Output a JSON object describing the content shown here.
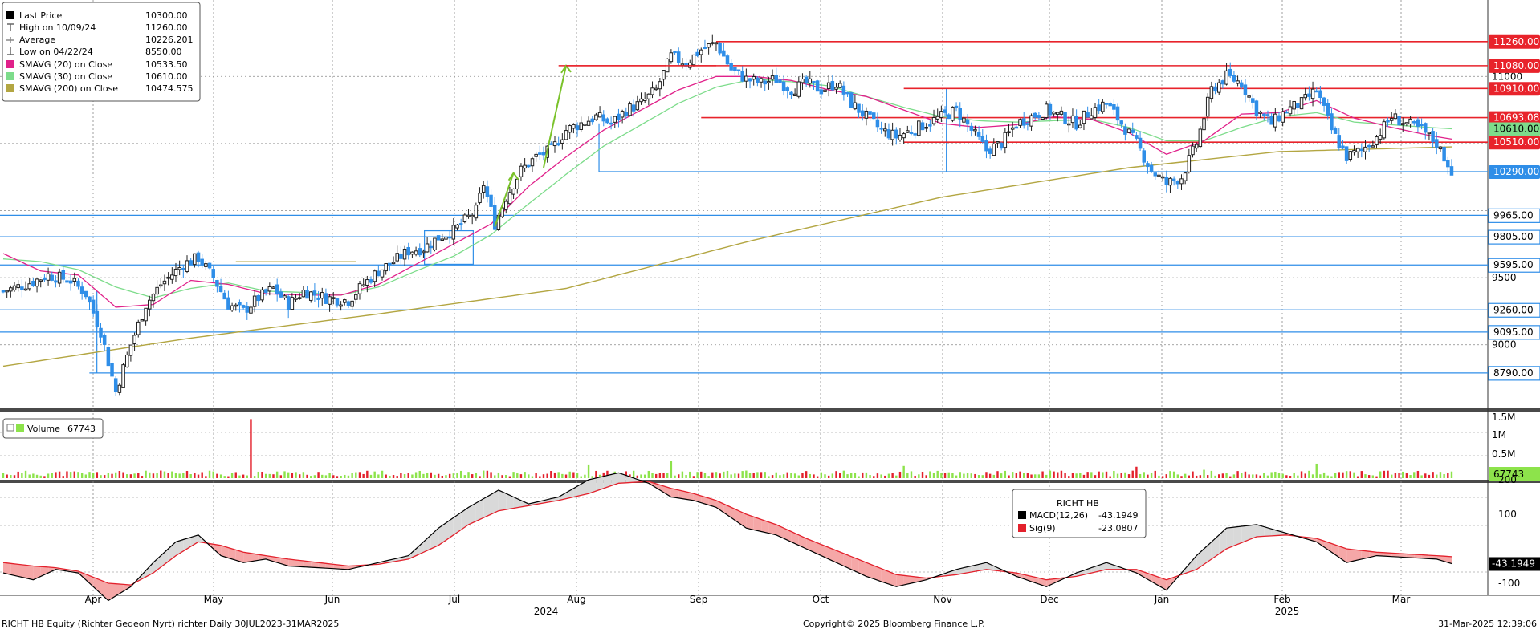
{
  "colors": {
    "up": "#1f1f1f",
    "down": "#2f8ee8",
    "sma20": "#e0218a",
    "sma30": "#7ddc8b",
    "sma200": "#b3a642",
    "resistance": "#e8232b",
    "support": "#2f8ee8",
    "arrow": "#7ac22a",
    "vol_up": "#8de34b",
    "vol_down": "#e3212c",
    "macd": "#000000",
    "sig": "#e3212c"
  },
  "legend_price": {
    "rows": [
      {
        "icon": "black-square",
        "label": "Last Price",
        "value": "10300.00"
      },
      {
        "icon": "high-marker",
        "label": "High on 10/09/24",
        "value": "11260.00"
      },
      {
        "icon": "average-marker",
        "label": "Average",
        "value": "10226.201"
      },
      {
        "icon": "low-marker",
        "label": "Low on 04/22/24",
        "value": "8550.00"
      },
      {
        "icon": "magenta-square",
        "label": "SMAVG (20)  on Close",
        "value": "10533.50"
      },
      {
        "icon": "lightgreen-square",
        "label": "SMAVG (30)  on Close",
        "value": "10610.00"
      },
      {
        "icon": "olive-square",
        "label": "SMAVG (200)  on Close",
        "value": "10474.575"
      }
    ]
  },
  "legend_volume": {
    "label": "Volume",
    "value": "67743"
  },
  "legend_macd": {
    "title": "RICHT HB",
    "rows": [
      {
        "icon": "black-square",
        "label": "MACD(12,26)",
        "value": "-43.1949"
      },
      {
        "icon": "red-square",
        "label": "Sig(9)",
        "value": "-23.0807"
      }
    ]
  },
  "footer": {
    "left": "RICHT HB Equity (Richter Gedeon Nyrt) richter  Daily 30JUL2023-31MAR2025",
    "center": "Copyright© 2025 Bloomberg Finance L.P.",
    "right": "31-Mar-2025 12:39:06"
  },
  "chart_data": {
    "type": "candlestick",
    "price_axis": {
      "ylim": [
        8550,
        11450
      ],
      "ticks": [
        9000,
        9500,
        10000,
        10500,
        11000
      ],
      "tick_labels": [
        "9000",
        "9500",
        "",
        "",
        "11000"
      ]
    },
    "x_axis": {
      "months": [
        "Apr",
        "May",
        "Jun",
        "Jul",
        "Aug",
        "Sep",
        "Oct",
        "Nov",
        "Dec",
        "Jan",
        "Feb",
        "Mar"
      ],
      "years": [
        "2024",
        "2025"
      ],
      "grid": true
    },
    "resistance_lines": [
      {
        "value": 11260.0,
        "label": "11260.00",
        "start_month": "Sep"
      },
      {
        "value": 11080.0,
        "label": "11080.00",
        "start_month": "Aug"
      },
      {
        "value": 10910.0,
        "label": "10910.00",
        "start_month": "Nov"
      },
      {
        "value": 10693.085,
        "label": "10693.085",
        "start_month": "Sep"
      },
      {
        "value": 10510.0,
        "label": "10510.00",
        "start_month": "Nov"
      }
    ],
    "support_lines": [
      {
        "value": 10290.0,
        "label": "10290.00",
        "start_month": "Aug"
      },
      {
        "value": 9965.0,
        "label": "9965.00",
        "start_month": "start"
      },
      {
        "value": 9805.0,
        "label": "9805.00",
        "start_month": "start"
      },
      {
        "value": 9595.0,
        "label": "9595.00",
        "start_month": "start"
      },
      {
        "value": 9260.0,
        "label": "9260.00",
        "start_month": "start"
      },
      {
        "value": 9095.0,
        "label": "9095.00",
        "start_month": "start"
      },
      {
        "value": 8790.0,
        "label": "8790.00",
        "start_month": "Apr"
      }
    ],
    "price_path": [
      [
        0,
        9400
      ],
      [
        6,
        9450
      ],
      [
        12,
        9520
      ],
      [
        18,
        9480
      ],
      [
        22,
        9380
      ],
      [
        26,
        9100
      ],
      [
        30,
        8650
      ],
      [
        34,
        9000
      ],
      [
        38,
        9300
      ],
      [
        42,
        9450
      ],
      [
        48,
        9600
      ],
      [
        52,
        9650
      ],
      [
        56,
        9500
      ],
      [
        60,
        9300
      ],
      [
        64,
        9250
      ],
      [
        68,
        9350
      ],
      [
        72,
        9420
      ],
      [
        76,
        9300
      ],
      [
        80,
        9400
      ],
      [
        86,
        9350
      ],
      [
        92,
        9330
      ],
      [
        96,
        9450
      ],
      [
        100,
        9550
      ],
      [
        104,
        9620
      ],
      [
        108,
        9700
      ],
      [
        112,
        9720
      ],
      [
        116,
        9800
      ],
      [
        120,
        9850
      ],
      [
        124,
        9950
      ],
      [
        126,
        10000
      ],
      [
        128,
        10200
      ],
      [
        131,
        9900
      ],
      [
        134,
        10100
      ],
      [
        138,
        10300
      ],
      [
        142,
        10400
      ],
      [
        146,
        10450
      ],
      [
        150,
        10600
      ],
      [
        154,
        10650
      ],
      [
        158,
        10700
      ],
      [
        162,
        10650
      ],
      [
        166,
        10750
      ],
      [
        170,
        10800
      ],
      [
        174,
        10900
      ],
      [
        178,
        11150
      ],
      [
        182,
        11100
      ],
      [
        186,
        11200
      ],
      [
        190,
        11250
      ],
      [
        194,
        11050
      ],
      [
        198,
        10980
      ],
      [
        202,
        10950
      ],
      [
        206,
        10980
      ],
      [
        210,
        10900
      ],
      [
        214,
        10950
      ],
      [
        218,
        10900
      ],
      [
        222,
        10950
      ],
      [
        226,
        10800
      ],
      [
        230,
        10700
      ],
      [
        234,
        10600
      ],
      [
        238,
        10550
      ],
      [
        242,
        10600
      ],
      [
        246,
        10650
      ],
      [
        250,
        10700
      ],
      [
        254,
        10750
      ],
      [
        258,
        10600
      ],
      [
        262,
        10450
      ],
      [
        266,
        10500
      ],
      [
        270,
        10650
      ],
      [
        274,
        10700
      ],
      [
        278,
        10750
      ],
      [
        282,
        10700
      ],
      [
        286,
        10650
      ],
      [
        290,
        10750
      ],
      [
        294,
        10800
      ],
      [
        298,
        10650
      ],
      [
        302,
        10500
      ],
      [
        306,
        10300
      ],
      [
        310,
        10200
      ],
      [
        314,
        10250
      ],
      [
        318,
        10500
      ],
      [
        322,
        10900
      ],
      [
        326,
        11000
      ],
      [
        330,
        10950
      ],
      [
        334,
        10750
      ],
      [
        338,
        10650
      ],
      [
        342,
        10750
      ],
      [
        346,
        10800
      ],
      [
        350,
        10900
      ],
      [
        354,
        10600
      ],
      [
        358,
        10400
      ],
      [
        362,
        10450
      ],
      [
        366,
        10550
      ],
      [
        370,
        10700
      ],
      [
        374,
        10650
      ],
      [
        378,
        10600
      ],
      [
        382,
        10500
      ],
      [
        386,
        10300
      ]
    ],
    "sma20_path": [
      [
        0,
        9680
      ],
      [
        10,
        9550
      ],
      [
        20,
        9520
      ],
      [
        30,
        9280
      ],
      [
        40,
        9300
      ],
      [
        50,
        9480
      ],
      [
        60,
        9450
      ],
      [
        70,
        9380
      ],
      [
        80,
        9370
      ],
      [
        90,
        9370
      ],
      [
        100,
        9450
      ],
      [
        110,
        9600
      ],
      [
        120,
        9750
      ],
      [
        130,
        9900
      ],
      [
        140,
        10180
      ],
      [
        150,
        10400
      ],
      [
        160,
        10600
      ],
      [
        170,
        10750
      ],
      [
        180,
        10900
      ],
      [
        190,
        11000
      ],
      [
        200,
        11000
      ],
      [
        210,
        10970
      ],
      [
        220,
        10900
      ],
      [
        230,
        10850
      ],
      [
        240,
        10750
      ],
      [
        250,
        10650
      ],
      [
        260,
        10620
      ],
      [
        270,
        10640
      ],
      [
        280,
        10700
      ],
      [
        290,
        10680
      ],
      [
        300,
        10580
      ],
      [
        310,
        10420
      ],
      [
        320,
        10520
      ],
      [
        330,
        10720
      ],
      [
        340,
        10730
      ],
      [
        350,
        10820
      ],
      [
        360,
        10690
      ],
      [
        370,
        10620
      ],
      [
        380,
        10560
      ],
      [
        386,
        10533
      ]
    ],
    "sma30_path": [
      [
        0,
        9640
      ],
      [
        10,
        9620
      ],
      [
        20,
        9560
      ],
      [
        30,
        9430
      ],
      [
        40,
        9350
      ],
      [
        50,
        9420
      ],
      [
        60,
        9460
      ],
      [
        70,
        9400
      ],
      [
        80,
        9390
      ],
      [
        90,
        9370
      ],
      [
        100,
        9430
      ],
      [
        110,
        9550
      ],
      [
        120,
        9660
      ],
      [
        130,
        9820
      ],
      [
        140,
        10050
      ],
      [
        150,
        10270
      ],
      [
        160,
        10480
      ],
      [
        170,
        10640
      ],
      [
        180,
        10800
      ],
      [
        190,
        10920
      ],
      [
        200,
        10980
      ],
      [
        210,
        10960
      ],
      [
        220,
        10930
      ],
      [
        230,
        10850
      ],
      [
        240,
        10770
      ],
      [
        250,
        10700
      ],
      [
        260,
        10670
      ],
      [
        270,
        10660
      ],
      [
        280,
        10670
      ],
      [
        290,
        10680
      ],
      [
        300,
        10620
      ],
      [
        310,
        10520
      ],
      [
        320,
        10520
      ],
      [
        330,
        10620
      ],
      [
        340,
        10700
      ],
      [
        350,
        10730
      ],
      [
        360,
        10660
      ],
      [
        370,
        10640
      ],
      [
        380,
        10620
      ],
      [
        386,
        10610
      ]
    ],
    "sma200_path": [
      [
        0,
        8840
      ],
      [
        50,
        9050
      ],
      [
        100,
        9230
      ],
      [
        150,
        9420
      ],
      [
        200,
        9780
      ],
      [
        250,
        10100
      ],
      [
        300,
        10320
      ],
      [
        340,
        10440
      ],
      [
        386,
        10475
      ]
    ],
    "green_arrows": [
      {
        "from": [
          131,
          9880
        ],
        "to": [
          136,
          10280
        ]
      },
      {
        "from": [
          144,
          10320
        ],
        "to": [
          150,
          11080
        ]
      }
    ],
    "volume": {
      "axis_ticks": [
        "1.5M",
        "1M",
        "0.5M"
      ],
      "last": "67743",
      "spikes": [
        [
          66,
          1.55
        ],
        [
          178,
          0.45
        ],
        [
          156,
          0.36
        ],
        [
          240,
          0.32
        ],
        [
          302,
          0.3
        ],
        [
          320,
          0.22
        ],
        [
          350,
          0.38
        ]
      ]
    },
    "macd": {
      "axis_ticks": [
        "200",
        "100",
        "-100"
      ],
      "last": "-43.1949",
      "macd_path": [
        [
          0,
          -70
        ],
        [
          8,
          -90
        ],
        [
          14,
          -60
        ],
        [
          20,
          -70
        ],
        [
          28,
          -150
        ],
        [
          34,
          -110
        ],
        [
          40,
          -40
        ],
        [
          46,
          20
        ],
        [
          52,
          40
        ],
        [
          58,
          -20
        ],
        [
          64,
          -40
        ],
        [
          70,
          -30
        ],
        [
          76,
          -50
        ],
        [
          84,
          -55
        ],
        [
          92,
          -60
        ],
        [
          100,
          -40
        ],
        [
          108,
          -20
        ],
        [
          116,
          60
        ],
        [
          124,
          120
        ],
        [
          132,
          170
        ],
        [
          140,
          130
        ],
        [
          148,
          150
        ],
        [
          156,
          200
        ],
        [
          164,
          220
        ],
        [
          172,
          190
        ],
        [
          178,
          150
        ],
        [
          184,
          140
        ],
        [
          190,
          120
        ],
        [
          198,
          60
        ],
        [
          206,
          40
        ],
        [
          214,
          0
        ],
        [
          222,
          -40
        ],
        [
          230,
          -80
        ],
        [
          238,
          -110
        ],
        [
          246,
          -90
        ],
        [
          254,
          -60
        ],
        [
          262,
          -40
        ],
        [
          270,
          -80
        ],
        [
          278,
          -110
        ],
        [
          286,
          -70
        ],
        [
          294,
          -40
        ],
        [
          302,
          -70
        ],
        [
          310,
          -120
        ],
        [
          318,
          -20
        ],
        [
          326,
          60
        ],
        [
          334,
          70
        ],
        [
          342,
          45
        ],
        [
          350,
          20
        ],
        [
          358,
          -40
        ],
        [
          366,
          -20
        ],
        [
          374,
          -25
        ],
        [
          382,
          -30
        ],
        [
          386,
          -43
        ]
      ],
      "sig_path": [
        [
          0,
          -40
        ],
        [
          8,
          -50
        ],
        [
          14,
          -55
        ],
        [
          20,
          -65
        ],
        [
          28,
          -100
        ],
        [
          34,
          -105
        ],
        [
          40,
          -70
        ],
        [
          46,
          -20
        ],
        [
          52,
          20
        ],
        [
          58,
          10
        ],
        [
          64,
          -10
        ],
        [
          70,
          -20
        ],
        [
          76,
          -30
        ],
        [
          84,
          -40
        ],
        [
          92,
          -50
        ],
        [
          100,
          -45
        ],
        [
          108,
          -30
        ],
        [
          116,
          10
        ],
        [
          124,
          70
        ],
        [
          132,
          110
        ],
        [
          140,
          125
        ],
        [
          148,
          140
        ],
        [
          156,
          160
        ],
        [
          164,
          190
        ],
        [
          172,
          195
        ],
        [
          178,
          175
        ],
        [
          184,
          160
        ],
        [
          190,
          140
        ],
        [
          198,
          100
        ],
        [
          206,
          70
        ],
        [
          214,
          30
        ],
        [
          222,
          -5
        ],
        [
          230,
          -40
        ],
        [
          238,
          -75
        ],
        [
          246,
          -85
        ],
        [
          254,
          -75
        ],
        [
          262,
          -60
        ],
        [
          270,
          -70
        ],
        [
          278,
          -90
        ],
        [
          286,
          -80
        ],
        [
          294,
          -60
        ],
        [
          302,
          -60
        ],
        [
          310,
          -90
        ],
        [
          318,
          -60
        ],
        [
          326,
          0
        ],
        [
          334,
          35
        ],
        [
          342,
          40
        ],
        [
          350,
          30
        ],
        [
          358,
          0
        ],
        [
          366,
          -10
        ],
        [
          374,
          -15
        ],
        [
          382,
          -20
        ],
        [
          386,
          -23
        ]
      ]
    }
  }
}
